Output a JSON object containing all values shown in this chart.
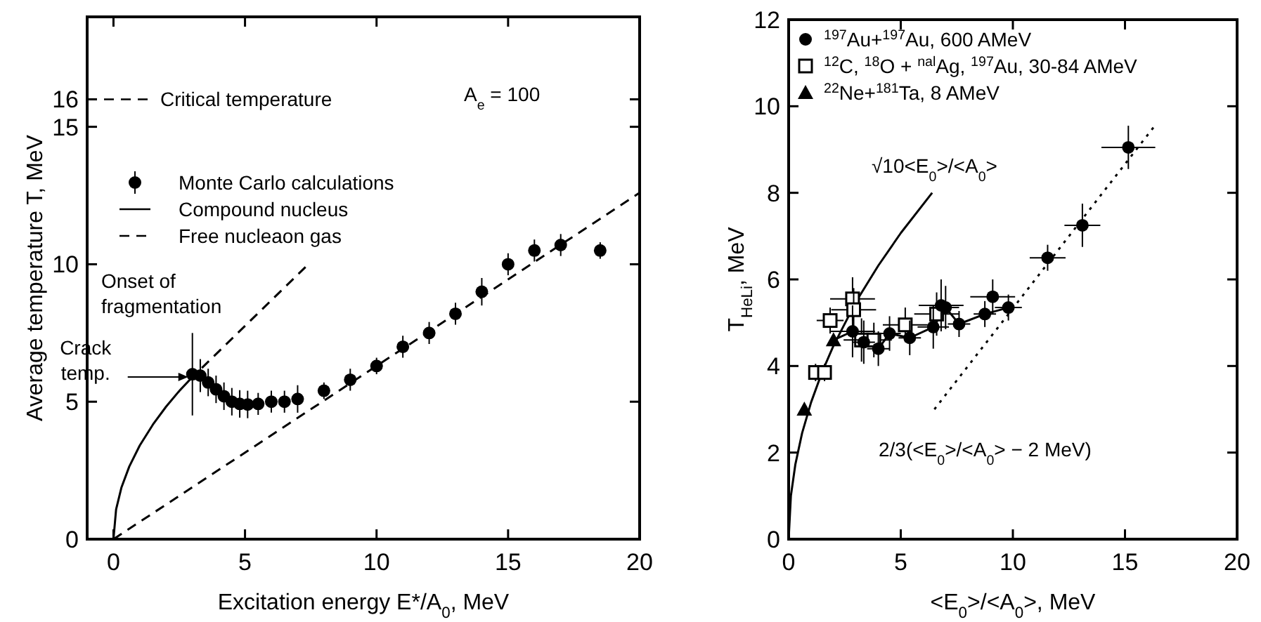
{
  "chart_data": [
    {
      "type": "scatter",
      "xlabel": "Excitation energy E*/A$_{0}$, MeV",
      "ylabel": "Average temperature T, MeV",
      "xlim": [
        -1,
        20
      ],
      "xticks": [
        0,
        5,
        10,
        15,
        20
      ],
      "ylim": [
        0,
        19
      ],
      "yticks": [
        0,
        5,
        10,
        15,
        16
      ],
      "legend": "top left",
      "ref_lines": [
        {
          "axis": "y",
          "value": 16,
          "label": "Critical temperature",
          "line_style": "dashed"
        }
      ],
      "annotations": [
        "A$_{e}$ = 100",
        "Onset of fragmentation",
        {
          "text": "Crack temp.",
          "x": 3,
          "y": 5.9
        }
      ],
      "series": [
        {
          "name": "Monte Carlo calculations",
          "marker": "circle",
          "color": "#000000",
          "x": [
            3,
            3.3,
            3.6,
            3.9,
            4.2,
            4.5,
            4.8,
            5.1,
            5.5,
            6,
            6.5,
            7,
            8,
            9,
            10,
            11,
            12,
            13,
            14,
            15,
            16,
            17,
            18.5
          ],
          "values": [
            6,
            5.95,
            5.7,
            5.45,
            5.2,
            5,
            4.92,
            4.9,
            4.92,
            5,
            5,
            5.1,
            5.4,
            5.8,
            6.3,
            7,
            7.5,
            8.2,
            9,
            10,
            10.5,
            10.7,
            10.5
          ],
          "errors": [
            1.5,
            0.6,
            0.5,
            0.5,
            0.5,
            0.5,
            0.5,
            0.5,
            0.4,
            0.4,
            0.4,
            0.5,
            0.3,
            0.4,
            0.3,
            0.4,
            0.4,
            0.4,
            0.5,
            0.4,
            0.4,
            0.4,
            0.3
          ]
        },
        {
          "name": "Compound nucleus",
          "type": "line",
          "line_style": "solid",
          "color": "#000000",
          "x": [
            0,
            0.1,
            0.3,
            0.6,
            1,
            1.5,
            2,
            2.5,
            3
          ],
          "values": [
            0,
            1.08,
            1.87,
            2.64,
            3.41,
            4.17,
            4.82,
            5.39,
            5.9
          ]
        },
        {
          "name": "Free nucleaon gas",
          "type": "line",
          "line_style": "dashed",
          "color": "#000000",
          "x": [
            0,
            20
          ],
          "values": [
            0,
            12.6
          ]
        },
        {
          "type": "line",
          "line_style": "dashed",
          "color": "#000000",
          "x": [
            2.9,
            7.3
          ],
          "values": [
            5.8,
            9.9
          ]
        }
      ]
    },
    {
      "type": "scatter",
      "xlabel": "<E$_{0}$>/<A$_{0}$>, MeV",
      "ylabel": "T$_{HeLi}$, MeV",
      "xlim": [
        0,
        20
      ],
      "xticks": [
        0,
        5,
        10,
        15,
        20
      ],
      "ylim": [
        0,
        12
      ],
      "yticks": [
        0,
        2,
        4,
        6,
        8,
        10,
        12
      ],
      "legend": "top left",
      "annotations": [
        "√10<E$_{0}$>/<A$_{0}$>",
        "2/3(<E$_{0}$>/<A$_{0}$> − 2 MeV)"
      ],
      "series": [
        {
          "name": "$^{197}$Au+$^{197}$Au, 600 AMeV",
          "marker": "circle",
          "color": "#000000",
          "x": [
            2.85,
            3.35,
            4.0,
            4.5,
            5.4,
            6.45,
            6.8,
            7.0,
            7.6,
            8.75,
            9.1,
            9.8,
            11.55,
            13.1,
            15.15
          ],
          "values": [
            4.8,
            4.55,
            4.4,
            4.75,
            4.65,
            4.9,
            5.4,
            5.35,
            4.97,
            5.2,
            5.6,
            5.35,
            6.5,
            7.25,
            9.05
          ],
          "errors": [
            0.6,
            0.5,
            0.4,
            0.4,
            0.4,
            0.5,
            0.6,
            0.5,
            0.3,
            0.3,
            0.4,
            0.3,
            0.3,
            0.5,
            0.5
          ],
          "xerrors": [
            1,
            0.5,
            0.5,
            0.5,
            0.5,
            0.7,
            1,
            0.6,
            0.5,
            0.5,
            1,
            0.6,
            0.8,
            0.8,
            1.2
          ]
        },
        {
          "name": "$^{12}$C, $^{18}$O + $^{nal}$Ag, $^{197}$Au, 30-84 AMeV",
          "marker": "square",
          "color": "#000000",
          "x": [
            1.2,
            1.6,
            1.85,
            2.85,
            2.9,
            3.25,
            3.8,
            5.2,
            6.6
          ],
          "values": [
            3.85,
            3.85,
            5.05,
            5.55,
            5.3,
            4.6,
            4.6,
            4.95,
            5.2
          ],
          "errors": [
            0.2,
            0.2,
            0.3,
            0.5,
            0.5,
            0.5,
            0.4,
            0.4,
            0.5
          ],
          "xerrors": [
            0.3,
            0.3,
            0.6,
            1,
            1,
            0.8,
            0.8,
            1,
            1
          ]
        },
        {
          "name": "$^{22}$Ne+$^{181}$Ta, 8 AMeV",
          "marker": "triangle",
          "color": "#000000",
          "x": [
            0.7,
            2.0
          ],
          "values": [
            3.0,
            4.6
          ]
        },
        {
          "type": "line",
          "line_style": "solid",
          "color": "#000000",
          "x": [
            0,
            0.1,
            0.3,
            0.6,
            1,
            1.5,
            2,
            3,
            4,
            5,
            6.4
          ],
          "values": [
            0,
            1,
            1.73,
            2.45,
            3.16,
            3.87,
            4.47,
            5.48,
            6.32,
            7.07,
            8
          ]
        },
        {
          "type": "line",
          "line_style": "solid",
          "color": "#000000",
          "x": [
            2,
            2.85,
            3.35,
            4.0,
            4.5,
            5.4,
            6.45,
            7.0,
            7.6,
            8.75,
            9.8
          ],
          "values": [
            4.6,
            4.8,
            4.55,
            4.4,
            4.75,
            4.65,
            4.9,
            5.35,
            4.97,
            5.2,
            5.35
          ]
        },
        {
          "type": "line",
          "line_style": "dotted",
          "color": "#000000",
          "x": [
            6.5,
            16.3
          ],
          "values": [
            3,
            9.53
          ]
        }
      ]
    }
  ]
}
